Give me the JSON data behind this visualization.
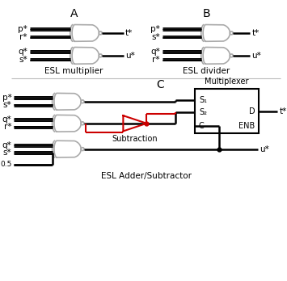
{
  "background_color": "#ffffff",
  "label_A": "A",
  "label_B": "B",
  "label_C": "C",
  "caption_left": "ESL multiplier",
  "caption_right": "ESL divider",
  "caption_bottom": "ESL Adder/Subtractor",
  "mux_label": "Multiplexer",
  "subtraction_label": "Subtraction",
  "gate_color": "#aaaaaa",
  "wire_color": "#000000",
  "red_color": "#cc0000",
  "line_width": 1.2,
  "wire_lw": 1.8,
  "text_color": "#000000",
  "font_size": 7.5,
  "label_font_size": 10,
  "figsize": [
    3.55,
    3.48
  ],
  "dpi": 100
}
